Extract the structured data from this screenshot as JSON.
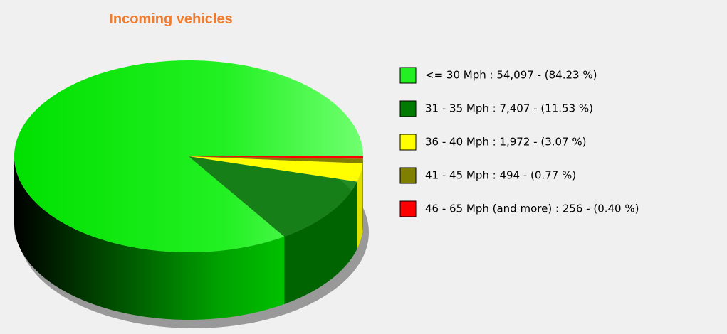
{
  "chart_data": {
    "type": "pie3d",
    "title": "Incoming vehicles",
    "categories": [
      "<= 30 Mph : 54,097 - (84.23 %)",
      "31 - 35 Mph : 7,407 - (11.53 %)",
      "36 - 40 Mph : 1,972 - (3.07 %)",
      "41 - 45 Mph : 494 - (0.77 %)",
      "46 - 65 Mph (and more) : 256 - (0.40 %)"
    ],
    "values": [
      54097,
      7407,
      1972,
      494,
      256
    ],
    "colors": [
      "#22f022",
      "#007a00",
      "#ffff00",
      "#808000",
      "#ff0000"
    ],
    "legend": "right"
  }
}
